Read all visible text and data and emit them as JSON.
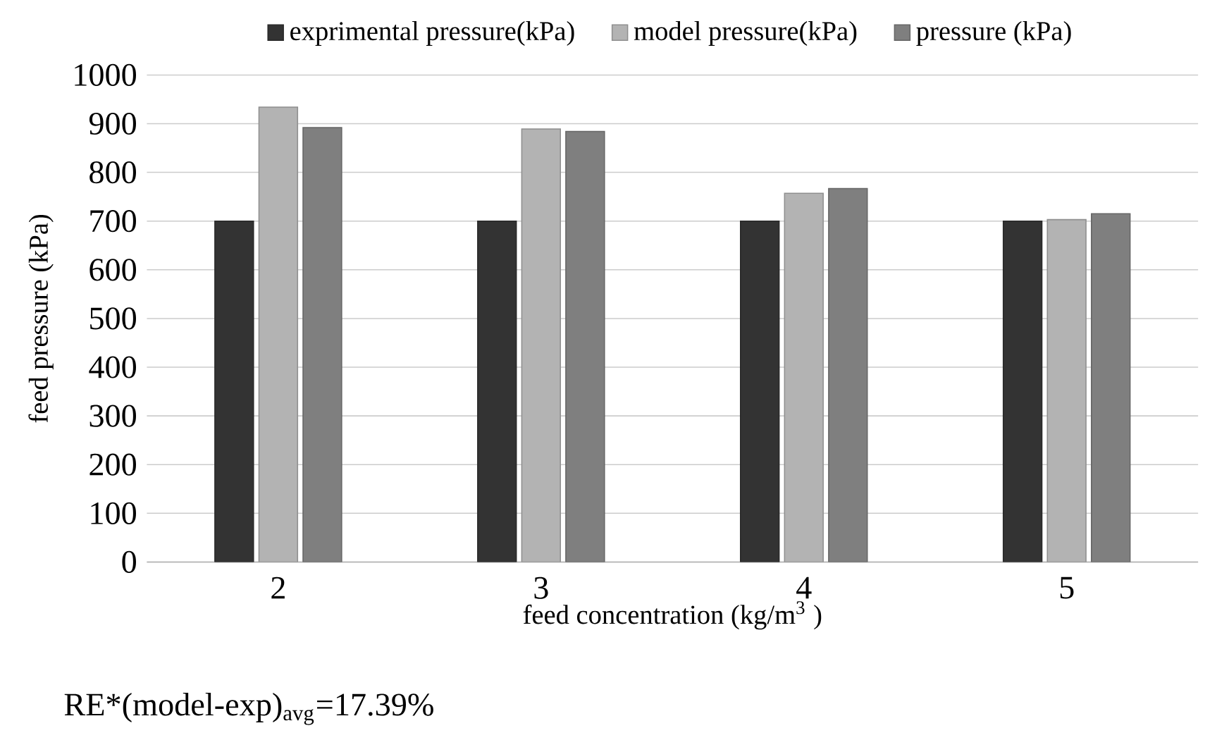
{
  "chart_data": {
    "type": "bar",
    "xlabel": "feed concentration (kg/m$^{3}$ )",
    "ylabel": "feed pressure (kPa)",
    "categories": [
      "2",
      "3",
      "4",
      "5"
    ],
    "series": [
      {
        "name": "exprimental pressure(kPa)",
        "color": "#333333",
        "values": [
          700,
          700,
          700,
          700
        ]
      },
      {
        "name": "model pressure(kPa)",
        "color": "#b3b3b3",
        "values": [
          934,
          889,
          757,
          703
        ]
      },
      {
        "name": "pressure (kPa)",
        "color": "#7f7f7f",
        "values": [
          892,
          884,
          767,
          715
        ]
      }
    ],
    "ylim": [
      0,
      1000
    ],
    "yticks": [
      0,
      100,
      200,
      300,
      400,
      500,
      600,
      700,
      800,
      900,
      1000
    ],
    "grid": "y",
    "legend": "top",
    "annotations": [
      "RE*(model-exp)$_{avg}$=17.39%"
    ]
  }
}
